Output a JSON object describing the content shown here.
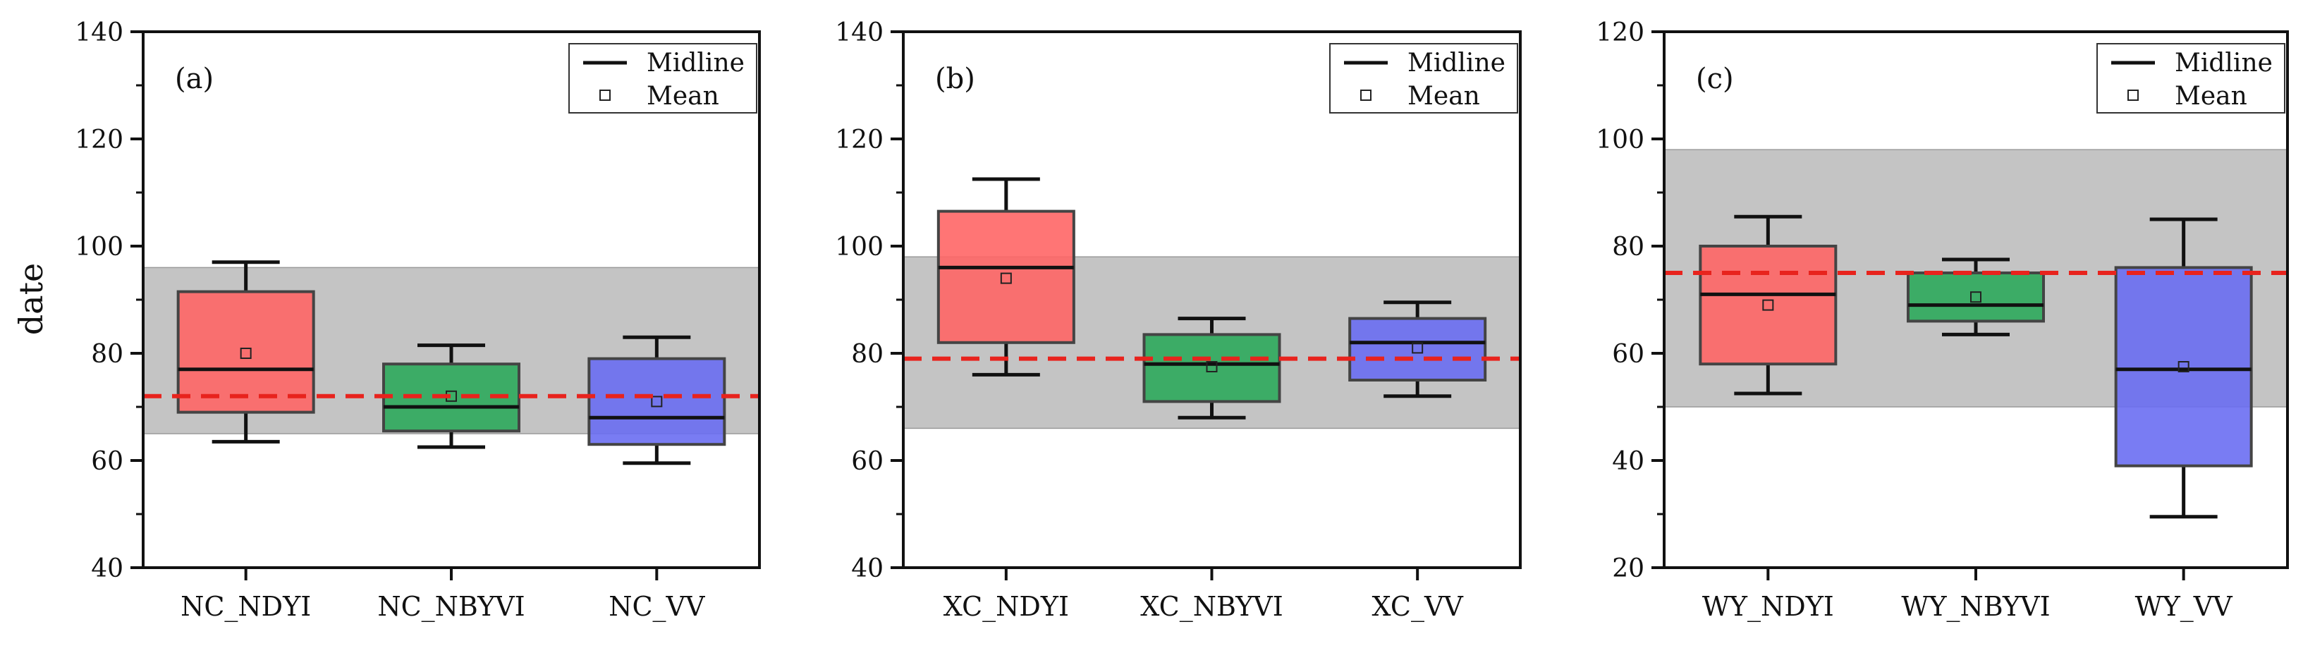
{
  "chart_data": {
    "type": "box",
    "ylabel": "date",
    "legend": {
      "entries": [
        "Midline",
        "Mean"
      ],
      "placement": "top-right"
    },
    "panels": [
      {
        "label": "(a)",
        "ylim": [
          40,
          140
        ],
        "yticks": [
          40,
          60,
          80,
          100,
          120,
          140
        ],
        "band": [
          65,
          96
        ],
        "reference_line": 72,
        "categories": [
          "NC_NDYI",
          "NC_NBYVI",
          "NC_VV"
        ],
        "boxes": [
          {
            "name": "NC_NDYI",
            "whisker_low": 63.5,
            "q1": 69,
            "median": 77,
            "q3": 91.5,
            "whisker_high": 97,
            "mean": 80,
            "color": "#ff6666"
          },
          {
            "name": "NC_NBYVI",
            "whisker_low": 62.5,
            "q1": 65.5,
            "median": 70,
            "q3": 78,
            "whisker_high": 81.5,
            "mean": 72,
            "color": "#2eaa5c"
          },
          {
            "name": "NC_VV",
            "whisker_low": 59.5,
            "q1": 63,
            "median": 68,
            "q3": 79,
            "whisker_high": 83,
            "mean": 71,
            "color": "#6a6ef2"
          }
        ]
      },
      {
        "label": "(b)",
        "ylim": [
          40,
          140
        ],
        "yticks": [
          40,
          60,
          80,
          100,
          120,
          140
        ],
        "band": [
          66,
          98
        ],
        "reference_line": 79,
        "categories": [
          "XC_NDYI",
          "XC_NBYVI",
          "XC_VV"
        ],
        "boxes": [
          {
            "name": "XC_NDYI",
            "whisker_low": 76,
            "q1": 82,
            "median": 96,
            "q3": 106.5,
            "whisker_high": 112.5,
            "mean": 94,
            "color": "#ff6666"
          },
          {
            "name": "XC_NBYVI",
            "whisker_low": 68,
            "q1": 71,
            "median": 78,
            "q3": 83.5,
            "whisker_high": 86.5,
            "mean": 77.5,
            "color": "#2eaa5c"
          },
          {
            "name": "XC_VV",
            "whisker_low": 72,
            "q1": 75,
            "median": 82,
            "q3": 86.5,
            "whisker_high": 89.5,
            "mean": 81,
            "color": "#6a6ef2"
          }
        ]
      },
      {
        "label": "(c)",
        "ylim": [
          20,
          120
        ],
        "yticks": [
          20,
          40,
          60,
          80,
          100,
          120
        ],
        "band": [
          50,
          98
        ],
        "reference_line": 75,
        "categories": [
          "WY_NDYI",
          "WY_NBYVI",
          "WY_VV"
        ],
        "boxes": [
          {
            "name": "WY_NDYI",
            "whisker_low": 52.5,
            "q1": 58,
            "median": 71,
            "q3": 80,
            "whisker_high": 85.5,
            "mean": 69,
            "color": "#ff6666"
          },
          {
            "name": "WY_NBYVI",
            "whisker_low": 63.5,
            "q1": 66,
            "median": 69,
            "q3": 75,
            "whisker_high": 77.5,
            "mean": 70.5,
            "color": "#2eaa5c"
          },
          {
            "name": "WY_VV",
            "whisker_low": 29.5,
            "q1": 39,
            "median": 57,
            "q3": 76,
            "whisker_high": 85,
            "mean": 57.5,
            "color": "#6a6ef2"
          }
        ]
      }
    ]
  },
  "colors": {
    "band": "#c4c4c4",
    "reference_line": "#e8231d",
    "axis": "#111111"
  }
}
